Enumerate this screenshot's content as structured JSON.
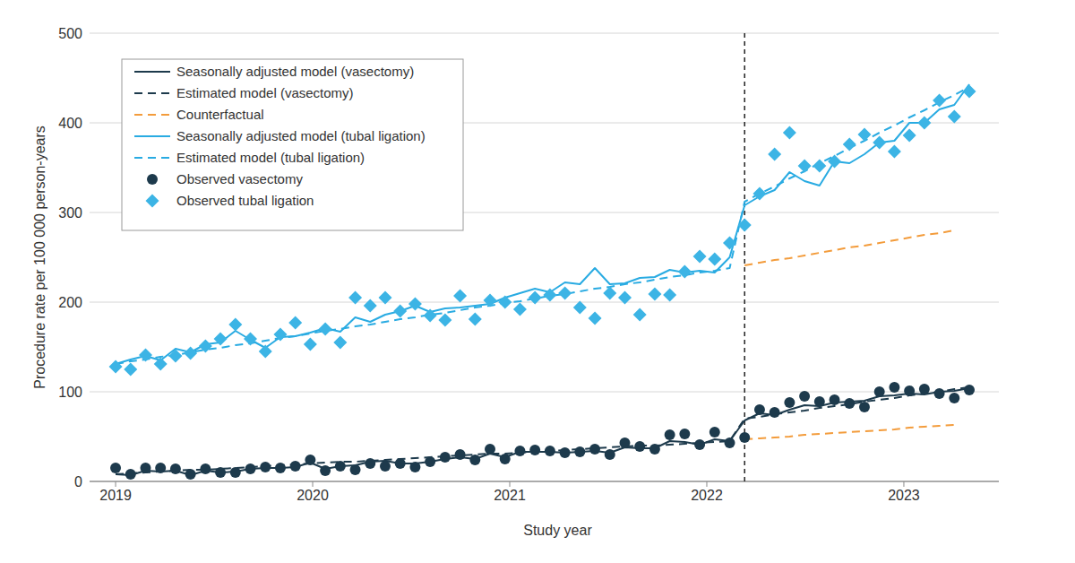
{
  "chart_data": {
    "type": "line",
    "x_label": "Study year",
    "y_label": "Procedure rate per 100 000 person-years",
    "x": [
      2019,
      2019.076,
      2019.152,
      2019.228,
      2019.304,
      2019.38,
      2019.456,
      2019.532,
      2019.608,
      2019.684,
      2019.76,
      2019.836,
      2019.912,
      2019.988,
      2020.064,
      2020.14,
      2020.216,
      2020.292,
      2020.368,
      2020.444,
      2020.52,
      2020.596,
      2020.672,
      2020.748,
      2020.824,
      2020.9,
      2020.976,
      2021.052,
      2021.128,
      2021.204,
      2021.28,
      2021.356,
      2021.432,
      2021.508,
      2021.584,
      2021.66,
      2021.736,
      2021.812,
      2021.888,
      2021.964,
      2022.04,
      2022.116,
      2022.192,
      2022.268,
      2022.344,
      2022.42,
      2022.496,
      2022.572,
      2022.648,
      2022.724,
      2022.8,
      2022.876,
      2022.952,
      2023.028,
      2023.104,
      2023.18,
      2023.256,
      2023.332
    ],
    "xlim": [
      2018.868,
      2023.482
    ],
    "xticks": [
      2019,
      2020,
      2021,
      2022,
      2023
    ],
    "ylim": [
      0,
      500
    ],
    "yticks": [
      0,
      100,
      200,
      300,
      400,
      500
    ],
    "grid": true,
    "legend": "upper-left",
    "reference_x": 2022.192,
    "series": [
      {
        "name": "Seasonally adjusted model (vasectomy)",
        "type": "line",
        "line_style": "solid",
        "color": "#1d3a4c",
        "values": [
          8,
          7,
          12,
          11,
          12,
          7,
          12,
          10,
          11,
          14,
          15,
          15,
          16,
          21,
          14,
          17,
          18,
          22,
          23,
          20,
          20,
          22,
          25,
          27,
          25,
          31,
          27,
          33,
          33,
          33,
          32,
          33,
          34,
          32,
          38,
          37,
          37,
          45,
          44,
          41,
          47,
          45,
          68,
          76,
          74,
          80,
          85,
          84,
          88,
          89,
          90,
          95,
          96,
          98,
          97,
          100,
          101,
          104
        ]
      },
      {
        "name": "Estimated model (vasectomy)",
        "type": "line",
        "line_style": "dashed",
        "color": "#1d3a4c",
        "values": [
          8,
          9,
          10,
          11,
          12,
          13,
          13,
          14,
          15,
          16,
          17,
          18,
          19,
          20,
          21,
          22,
          22,
          23,
          24,
          25,
          26,
          27,
          28,
          29,
          30,
          31,
          31,
          32,
          33,
          34,
          35,
          36,
          37,
          38,
          39,
          40,
          40,
          41,
          42,
          43,
          44,
          45,
          70,
          72,
          75,
          77,
          79,
          82,
          84,
          86,
          89,
          91,
          93,
          96,
          98,
          100,
          103,
          105
        ]
      },
      {
        "name": "Counterfactual",
        "type": "line",
        "line_style": "dashed",
        "color": "#f39c3c",
        "values": [
          null,
          null,
          null,
          null,
          null,
          null,
          null,
          null,
          null,
          null,
          null,
          null,
          null,
          null,
          null,
          null,
          null,
          null,
          null,
          null,
          null,
          null,
          null,
          null,
          null,
          null,
          null,
          null,
          null,
          null,
          null,
          null,
          null,
          null,
          null,
          null,
          null,
          null,
          null,
          null,
          null,
          null,
          241,
          244,
          247,
          249,
          252,
          255,
          258,
          261,
          263,
          266,
          269,
          272,
          275,
          277,
          280,
          null
        ]
      },
      {
        "name": "Counterfactual",
        "type": "line",
        "line_style": "dashed",
        "color": "#f39c3c",
        "values": [
          null,
          null,
          null,
          null,
          null,
          null,
          null,
          null,
          null,
          null,
          null,
          null,
          null,
          null,
          null,
          null,
          null,
          null,
          null,
          null,
          null,
          null,
          null,
          null,
          null,
          null,
          null,
          null,
          null,
          null,
          null,
          null,
          null,
          null,
          null,
          null,
          null,
          null,
          null,
          null,
          null,
          null,
          47,
          48,
          49,
          50,
          52,
          53,
          54,
          55,
          56,
          57,
          58,
          60,
          61,
          62,
          63,
          null
        ]
      },
      {
        "name": "Seasonally adjusted model (tubal ligation)",
        "type": "line",
        "line_style": "solid",
        "color": "#29abe2",
        "values": [
          131,
          136,
          140,
          135,
          148,
          144,
          153,
          155,
          168,
          158,
          149,
          161,
          162,
          166,
          171,
          167,
          183,
          178,
          186,
          190,
          196,
          189,
          193,
          194,
          196,
          198,
          205,
          210,
          215,
          211,
          222,
          220,
          238,
          220,
          221,
          227,
          228,
          236,
          233,
          235,
          233,
          250,
          308,
          318,
          325,
          345,
          335,
          330,
          357,
          355,
          365,
          378,
          380,
          400,
          400,
          415,
          420,
          443
        ]
      },
      {
        "name": "Estimated model (tubal ligation)",
        "type": "line",
        "line_style": "dashed",
        "color": "#29abe2",
        "values": [
          131,
          134,
          136,
          139,
          141,
          144,
          147,
          149,
          152,
          154,
          157,
          160,
          162,
          165,
          168,
          170,
          173,
          175,
          178,
          181,
          183,
          186,
          188,
          191,
          194,
          196,
          199,
          201,
          204,
          207,
          209,
          212,
          215,
          217,
          220,
          222,
          225,
          228,
          230,
          233,
          235,
          238,
          312,
          321,
          329,
          338,
          346,
          355,
          363,
          372,
          380,
          389,
          397,
          406,
          414,
          423,
          431,
          440
        ]
      },
      {
        "name": "Observed vasectomy",
        "type": "scatter",
        "marker": "circle",
        "color": "#1d3a4c",
        "values": [
          15,
          8,
          15,
          15,
          14,
          8,
          14,
          10,
          10,
          14,
          16,
          15,
          17,
          24,
          12,
          17,
          13,
          20,
          17,
          20,
          16,
          22,
          27,
          30,
          24,
          36,
          25,
          34,
          35,
          34,
          32,
          33,
          36,
          30,
          43,
          39,
          36,
          52,
          53,
          41,
          55,
          43,
          49,
          80,
          77,
          88,
          95,
          89,
          91,
          87,
          83,
          100,
          105,
          101,
          103,
          98,
          93,
          102
        ]
      },
      {
        "name": "Observed tubal ligation",
        "type": "scatter",
        "marker": "diamond",
        "color": "#3cb4e5",
        "values": [
          128,
          125,
          141,
          131,
          140,
          143,
          151,
          159,
          175,
          159,
          145,
          164,
          177,
          153,
          170,
          155,
          205,
          196,
          205,
          190,
          198,
          185,
          180,
          207,
          181,
          202,
          200,
          192,
          205,
          208,
          210,
          194,
          182,
          210,
          205,
          186,
          209,
          208,
          234,
          251,
          248,
          266,
          286,
          321,
          365,
          389,
          352,
          352,
          357,
          376,
          387,
          378,
          368,
          386,
          400,
          425,
          407,
          435
        ]
      }
    ]
  }
}
